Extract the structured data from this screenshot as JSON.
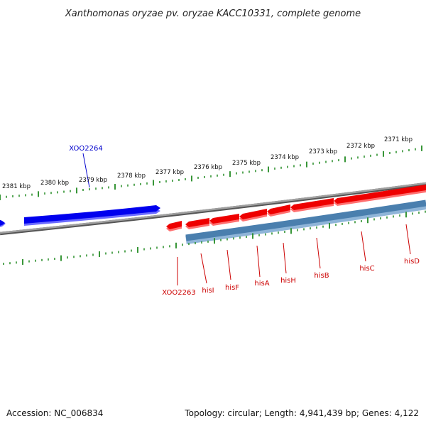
{
  "title": "Xanthomonas oryzae pv. oryzae KACC10331, complete genome",
  "footer": {
    "accession": "Accession: NC_006834",
    "summary": "Topology: circular; Length: 4,941,439 bp; Genes: 4,122"
  },
  "colors": {
    "forward_gene": "#0000ee",
    "reverse_gene": "#ee0000",
    "operon": "#4a7fae",
    "backbone": "#888888",
    "ticks": "#228b22",
    "forward_label": "#0000cc",
    "reverse_label": "#cc0000"
  },
  "ruler": {
    "unit": "kbp",
    "labels": [
      "2381 kbp",
      "2380 kbp",
      "2379 kbp",
      "2378 kbp",
      "2377 kbp",
      "2376 kbp",
      "2375 kbp",
      "2374 kbp",
      "2373 kbp",
      "2372 kbp",
      "2371 kbp"
    ]
  },
  "genes": {
    "forward": [
      {
        "label": "XOO2264"
      }
    ],
    "reverse": [
      {
        "label": "XOO2263"
      },
      {
        "label": "hisI"
      },
      {
        "label": "hisF"
      },
      {
        "label": "hisA"
      },
      {
        "label": "hisH"
      },
      {
        "label": "hisB"
      },
      {
        "label": "hisC"
      },
      {
        "label": "hisD"
      }
    ]
  }
}
